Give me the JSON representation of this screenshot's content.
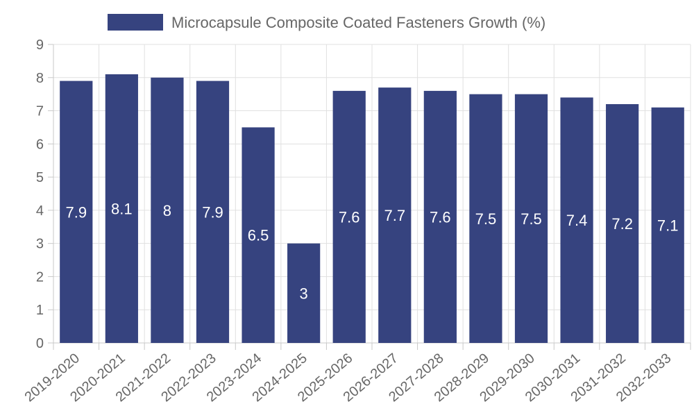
{
  "chart_data": {
    "type": "bar",
    "title": "",
    "xlabel": "",
    "ylabel": "",
    "categories": [
      "2019-2020",
      "2020-2021",
      "2021-2022",
      "2022-2023",
      "2023-2024",
      "2024-2025",
      "2025-2026",
      "2026-2027",
      "2027-2028",
      "2028-2029",
      "2029-2030",
      "2030-2031",
      "2031-2032",
      "2032-2033"
    ],
    "series": [
      {
        "name": "Microcapsule Composite Coated Fasteners Growth (%)",
        "values": [
          7.9,
          8.1,
          8,
          7.9,
          6.5,
          3,
          7.6,
          7.7,
          7.6,
          7.5,
          7.5,
          7.4,
          7.2,
          7.1
        ],
        "color": "#36437f"
      }
    ],
    "ylim": [
      0,
      9
    ],
    "yticks": [
      0,
      1,
      2,
      3,
      4,
      5,
      6,
      7,
      8,
      9
    ],
    "grid": true,
    "legend": "top-center",
    "data_labels": true
  }
}
